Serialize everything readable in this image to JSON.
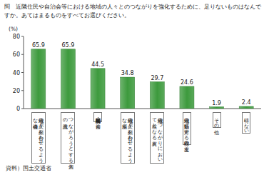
{
  "chart_data": {
    "type": "bar",
    "title": "問　近隣住民や自治会等における地域の人々とのつながりを強化するために、足りないものはなんですか。あてはまるものをすべてお選びください。",
    "y_label": "(%)",
    "source": "資料）国土交通省",
    "categories": [
      "地域の人々が顔を合わせるような機会",
      "つながろうとする個人の意識",
      "時間的・経済的な余裕",
      "地域の人々が顔を合わせるような場所",
      "地域のつながりにおいて核となる人材",
      "地域の活動に対する行政の支援",
      "その他",
      "特にない"
    ],
    "values": [
      65.9,
      65.9,
      44.5,
      34.8,
      29.7,
      24.6,
      1.9,
      2.4
    ],
    "color": "#3d9a3d",
    "ylim": [
      0,
      80
    ],
    "yticks": [
      0,
      20,
      40,
      60,
      80
    ],
    "grid": false,
    "data_labels": true
  }
}
